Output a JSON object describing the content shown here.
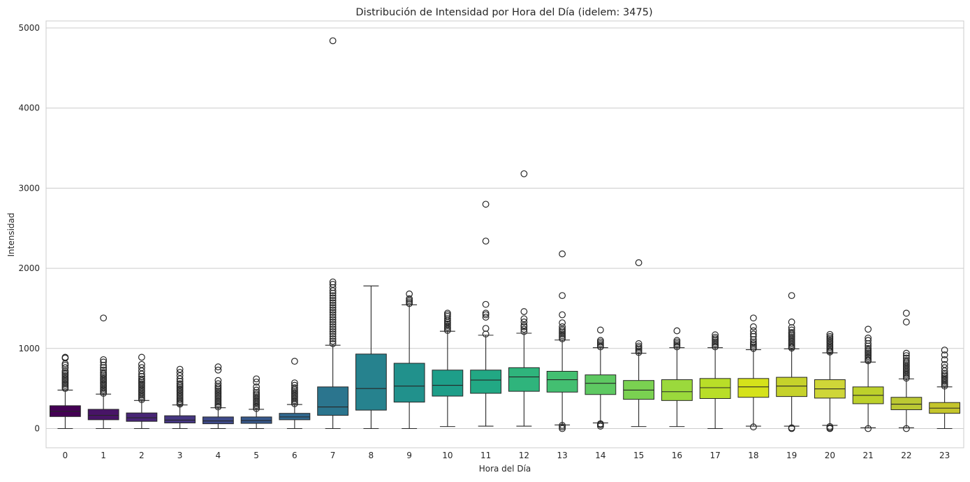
{
  "chart_data": {
    "type": "box",
    "title": "Distribución de Intensidad por Hora del Día (idelem: 3475)",
    "xlabel": "Hora del Día",
    "ylabel": "Intensidad",
    "ylim": [
      -250,
      5080
    ],
    "yticks": [
      0,
      1000,
      2000,
      3000,
      4000,
      5000
    ],
    "grid": "horizontal",
    "colormap": "viridis",
    "categories": [
      "0",
      "1",
      "2",
      "3",
      "4",
      "5",
      "6",
      "7",
      "8",
      "9",
      "10",
      "11",
      "12",
      "13",
      "14",
      "15",
      "16",
      "17",
      "18",
      "19",
      "20",
      "21",
      "22",
      "23"
    ],
    "colors": [
      "#440154",
      "#481567",
      "#472c7a",
      "#3f4788",
      "#39558c",
      "#32648e",
      "#2d718e",
      "#277f8e",
      "#238a8d",
      "#1f968b",
      "#20a386",
      "#29af7f",
      "#3dbc74",
      "#56c667",
      "#75d054",
      "#95d840",
      "#b8de29",
      "#dde318",
      "#440154",
      "#440154",
      "#440154",
      "#440154",
      "#440154",
      "#440154"
    ],
    "boxes": [
      {
        "whislo": 0,
        "q1": 150,
        "med": 215,
        "q3": 285,
        "whishi": 480,
        "fliers": [
          500,
          520,
          540,
          560,
          580,
          600,
          620,
          640,
          660,
          680,
          700,
          720,
          760,
          790,
          810,
          880,
          890
        ]
      },
      {
        "whislo": 0,
        "q1": 110,
        "med": 165,
        "q3": 240,
        "whishi": 430,
        "fliers": [
          440,
          460,
          480,
          500,
          520,
          540,
          560,
          580,
          600,
          620,
          640,
          660,
          680,
          700,
          730,
          760,
          790,
          830,
          860,
          1380
        ]
      },
      {
        "whislo": 0,
        "q1": 90,
        "med": 135,
        "q3": 195,
        "whishi": 350,
        "fliers": [
          360,
          380,
          400,
          420,
          440,
          460,
          480,
          500,
          520,
          540,
          560,
          580,
          600,
          620,
          650,
          680,
          720,
          760,
          800,
          890
        ]
      },
      {
        "whislo": 0,
        "q1": 70,
        "med": 105,
        "q3": 160,
        "whishi": 295,
        "fliers": [
          305,
          320,
          340,
          360,
          380,
          400,
          420,
          440,
          460,
          480,
          500,
          520,
          540,
          560,
          590,
          620,
          660,
          700,
          740
        ]
      },
      {
        "whislo": 0,
        "q1": 60,
        "med": 95,
        "q3": 145,
        "whishi": 260,
        "fliers": [
          270,
          290,
          310,
          330,
          350,
          370,
          390,
          410,
          430,
          450,
          470,
          490,
          510,
          530,
          560,
          600,
          730,
          770
        ]
      },
      {
        "whislo": 0,
        "q1": 65,
        "med": 100,
        "q3": 145,
        "whishi": 240,
        "fliers": [
          250,
          270,
          290,
          310,
          330,
          350,
          370,
          390,
          410,
          430,
          450,
          480,
          520,
          580,
          620
        ]
      },
      {
        "whislo": 0,
        "q1": 110,
        "med": 145,
        "q3": 190,
        "whishi": 300,
        "fliers": [
          310,
          330,
          350,
          370,
          390,
          410,
          430,
          450,
          470,
          490,
          510,
          540,
          570,
          840
        ]
      },
      {
        "whislo": 0,
        "q1": 165,
        "med": 270,
        "q3": 520,
        "whishi": 1040,
        "fliers": [
          1060,
          1090,
          1120,
          1150,
          1180,
          1210,
          1240,
          1270,
          1300,
          1330,
          1360,
          1390,
          1420,
          1450,
          1480,
          1510,
          1540,
          1570,
          1600,
          1630,
          1660,
          1690,
          1720,
          1760,
          1800,
          1830,
          4840
        ]
      },
      {
        "whislo": 0,
        "q1": 230,
        "med": 500,
        "q3": 930,
        "whishi": 1780,
        "fliers": []
      },
      {
        "whislo": 0,
        "q1": 330,
        "med": 530,
        "q3": 815,
        "whishi": 1545,
        "fliers": [
          1560,
          1580,
          1600,
          1620,
          1680
        ]
      },
      {
        "whislo": 25,
        "q1": 405,
        "med": 540,
        "q3": 730,
        "whishi": 1215,
        "fliers": [
          1225,
          1245,
          1265,
          1285,
          1305,
          1325,
          1345,
          1370,
          1400,
          1420,
          1440
        ]
      },
      {
        "whislo": 30,
        "q1": 440,
        "med": 605,
        "q3": 730,
        "whishi": 1165,
        "fliers": [
          1180,
          1250,
          1390,
          1420,
          1440,
          1550,
          2340,
          2800
        ]
      },
      {
        "whislo": 30,
        "q1": 465,
        "med": 645,
        "q3": 760,
        "whishi": 1190,
        "fliers": [
          1210,
          1240,
          1270,
          1290,
          1330,
          1370,
          1460,
          3180
        ]
      },
      {
        "whislo": 45,
        "q1": 455,
        "med": 610,
        "q3": 715,
        "whishi": 1105,
        "fliers": [
          0,
          20,
          40,
          1120,
          1140,
          1160,
          1180,
          1200,
          1220,
          1240,
          1270,
          1320,
          1420,
          1660,
          2180
        ]
      },
      {
        "whislo": 70,
        "q1": 425,
        "med": 565,
        "q3": 670,
        "whishi": 1010,
        "fliers": [
          30,
          50,
          60,
          1020,
          1040,
          1060,
          1080,
          1100,
          1230
        ]
      },
      {
        "whislo": 25,
        "q1": 365,
        "med": 480,
        "q3": 600,
        "whishi": 940,
        "fliers": [
          950,
          970,
          990,
          1010,
          1030,
          1060,
          2070
        ]
      },
      {
        "whislo": 25,
        "q1": 350,
        "med": 460,
        "q3": 610,
        "whishi": 1010,
        "fliers": [
          1020,
          1040,
          1060,
          1080,
          1100,
          1220
        ]
      },
      {
        "whislo": 0,
        "q1": 375,
        "med": 510,
        "q3": 625,
        "whishi": 1010,
        "fliers": [
          1020,
          1040,
          1060,
          1080,
          1100,
          1120,
          1140,
          1170
        ]
      },
      {
        "whislo": 30,
        "q1": 390,
        "med": 520,
        "q3": 625,
        "whishi": 985,
        "fliers": [
          20,
          1000,
          1020,
          1040,
          1060,
          1080,
          1110,
          1150,
          1180,
          1220,
          1270,
          1380
        ]
      },
      {
        "whislo": 30,
        "q1": 400,
        "med": 530,
        "q3": 640,
        "whishi": 995,
        "fliers": [
          0,
          10,
          1005,
          1020,
          1040,
          1060,
          1080,
          1100,
          1120,
          1140,
          1160,
          1180,
          1200,
          1230,
          1260,
          1330,
          1660
        ]
      },
      {
        "whislo": 40,
        "q1": 380,
        "med": 495,
        "q3": 610,
        "whishi": 945,
        "fliers": [
          0,
          10,
          25,
          955,
          970,
          990,
          1010,
          1030,
          1050,
          1070,
          1090,
          1110,
          1130,
          1150,
          1175
        ]
      },
      {
        "whislo": 10,
        "q1": 310,
        "med": 415,
        "q3": 520,
        "whishi": 830,
        "fliers": [
          0,
          845,
          860,
          880,
          900,
          920,
          940,
          960,
          980,
          1000,
          1030,
          1060,
          1100,
          1130,
          1240
        ]
      },
      {
        "whislo": 10,
        "q1": 235,
        "med": 305,
        "q3": 390,
        "whishi": 620,
        "fliers": [
          0,
          630,
          650,
          670,
          690,
          710,
          730,
          750,
          770,
          790,
          810,
          830,
          850,
          880,
          910,
          940,
          1330,
          1440
        ]
      },
      {
        "whislo": 0,
        "q1": 190,
        "med": 255,
        "q3": 325,
        "whishi": 520,
        "fliers": [
          530,
          550,
          570,
          590,
          610,
          630,
          650,
          670,
          690,
          720,
          760,
          800,
          860,
          920,
          980
        ]
      }
    ]
  }
}
